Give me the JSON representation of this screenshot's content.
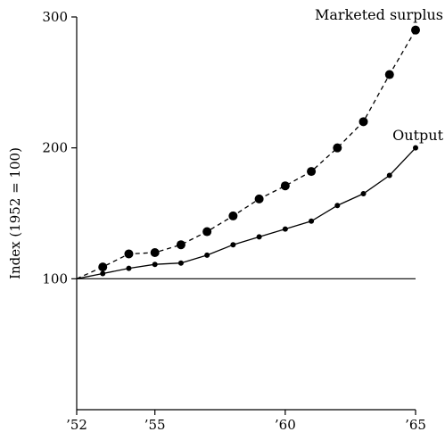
{
  "chart_data": {
    "type": "line",
    "title": "",
    "xlabel": "",
    "ylabel": "Index (1952 = 100)",
    "xlim": [
      1952,
      1965
    ],
    "ylim": [
      0,
      300
    ],
    "x_ticks": [
      1952,
      1955,
      1960,
      1965
    ],
    "x_tick_labels": [
      "’52",
      "’55",
      "’60",
      "’65"
    ],
    "y_ticks": [
      100,
      200,
      300
    ],
    "y_tick_labels": [
      "100",
      "200",
      "300"
    ],
    "reference_line": 100,
    "grid": false,
    "legend": "none",
    "series": [
      {
        "name": "Marketed surplus",
        "style": "dashed",
        "marker": "large-dot",
        "color": "#000000",
        "x": [
          1952,
          1953,
          1954,
          1955,
          1956,
          1957,
          1958,
          1959,
          1960,
          1961,
          1962,
          1963,
          1964,
          1965
        ],
        "y": [
          100,
          109,
          119,
          120,
          126,
          136,
          148,
          161,
          171,
          182,
          200,
          220,
          256,
          290
        ]
      },
      {
        "name": "Output",
        "style": "solid",
        "marker": "small-dot",
        "color": "#000000",
        "x": [
          1952,
          1953,
          1954,
          1955,
          1956,
          1957,
          1958,
          1959,
          1960,
          1961,
          1962,
          1963,
          1964,
          1965
        ],
        "y": [
          100,
          104,
          108,
          111,
          112,
          118,
          126,
          132,
          138,
          144,
          156,
          165,
          179,
          200
        ]
      }
    ]
  }
}
